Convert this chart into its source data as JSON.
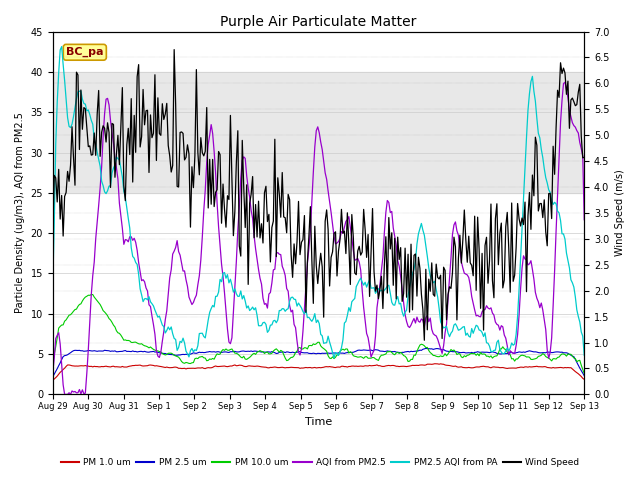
{
  "title": "Purple Air Particulate Matter",
  "ylabel_left": "Particle Density (ug/m3), AQI from PM2.5",
  "ylabel_right": "Wind Speed (m/s)",
  "xlabel": "Time",
  "annotation_text": "BC_pa",
  "xlim_days": 15.0,
  "ylim_left": [
    0,
    45
  ],
  "ylim_right": [
    0.0,
    7.0
  ],
  "yticks_right": [
    0.0,
    0.5,
    1.0,
    1.5,
    2.0,
    2.5,
    3.0,
    3.5,
    4.0,
    4.5,
    5.0,
    5.5,
    6.0,
    6.5,
    7.0
  ],
  "yticks_left": [
    0,
    5,
    10,
    15,
    20,
    25,
    30,
    35,
    40,
    45
  ],
  "xtick_labels": [
    "Aug 29",
    "Aug 30",
    "Aug 31",
    "Sep 1",
    "Sep 2",
    "Sep 3",
    "Sep 4",
    "Sep 5",
    "Sep 6",
    "Sep 7",
    "Sep 8",
    "Sep 9",
    "Sep 10",
    "Sep 11",
    "Sep 12",
    "Sep 13"
  ],
  "colors": {
    "pm1": "#cc0000",
    "pm25": "#0000cc",
    "pm10": "#00cc00",
    "aqi_pm25": "#9900cc",
    "aqi_pa": "#00cccc",
    "wind": "#000000"
  },
  "legend": [
    "PM 1.0 um",
    "PM 2.5 um",
    "PM 10.0 um",
    "AQI from PM2.5",
    "PM2.5 AQI from PA",
    "Wind Speed"
  ],
  "shading": {
    "ymin": 25,
    "ymax": 40,
    "color": "#e8e8e8"
  },
  "background_color": "#ffffff",
  "grid_color": "#cccccc"
}
